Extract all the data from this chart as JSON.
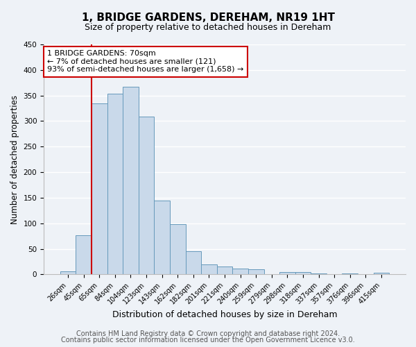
{
  "title": "1, BRIDGE GARDENS, DEREHAM, NR19 1HT",
  "subtitle": "Size of property relative to detached houses in Dereham",
  "xlabel": "Distribution of detached houses by size in Dereham",
  "ylabel": "Number of detached properties",
  "bar_color": "#c9d9ea",
  "bar_edge_color": "#6699bb",
  "bin_labels": [
    "26sqm",
    "45sqm",
    "65sqm",
    "84sqm",
    "104sqm",
    "123sqm",
    "143sqm",
    "162sqm",
    "182sqm",
    "201sqm",
    "221sqm",
    "240sqm",
    "259sqm",
    "279sqm",
    "298sqm",
    "318sqm",
    "337sqm",
    "357sqm",
    "376sqm",
    "396sqm",
    "415sqm"
  ],
  "bar_heights": [
    6,
    77,
    335,
    353,
    367,
    309,
    144,
    98,
    46,
    20,
    15,
    11,
    10,
    0,
    5,
    4,
    2,
    0,
    2,
    0,
    3
  ],
  "ylim": [
    0,
    450
  ],
  "yticks": [
    0,
    50,
    100,
    150,
    200,
    250,
    300,
    350,
    400,
    450
  ],
  "vline_color": "#cc0000",
  "annotation_text": "1 BRIDGE GARDENS: 70sqm\n← 7% of detached houses are smaller (121)\n93% of semi-detached houses are larger (1,658) →",
  "annotation_box_color": "#ffffff",
  "annotation_box_edge": "#cc0000",
  "footer_line1": "Contains HM Land Registry data © Crown copyright and database right 2024.",
  "footer_line2": "Contains public sector information licensed under the Open Government Licence v3.0.",
  "background_color": "#eef2f7",
  "plot_background_color": "#eef2f7",
  "grid_color": "#ffffff",
  "title_fontsize": 11,
  "subtitle_fontsize": 9,
  "ylabel_fontsize": 8.5,
  "xlabel_fontsize": 9,
  "tick_fontsize": 7,
  "footer_fontsize": 7
}
